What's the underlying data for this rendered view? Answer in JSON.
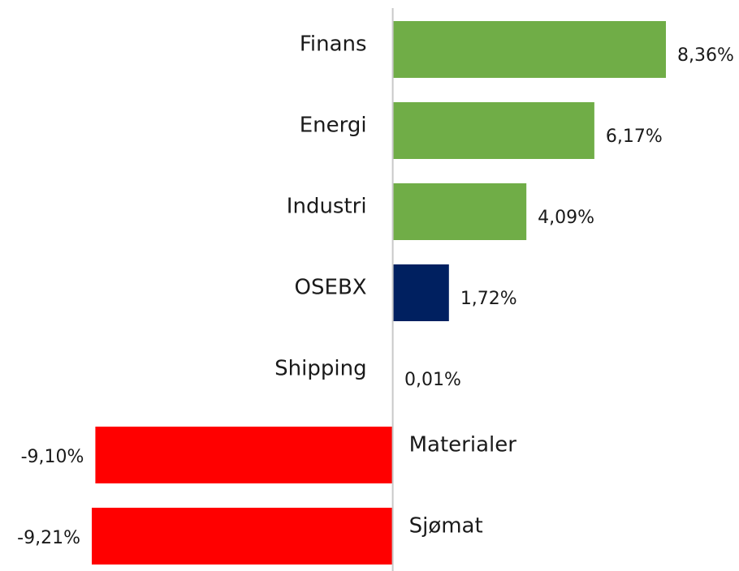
{
  "chart_data": {
    "type": "bar",
    "orientation": "horizontal",
    "categories": [
      "Finans",
      "Energi",
      "Industri",
      "OSEBX",
      "Shipping",
      "Materialer",
      "Sjømat"
    ],
    "values": [
      8.36,
      6.17,
      4.09,
      1.72,
      0.01,
      -9.1,
      -9.21
    ],
    "value_labels": [
      "8,36%",
      "6,17%",
      "4,09%",
      "1,72%",
      "0,01%",
      "-9,10%",
      "-9,21%"
    ],
    "colors": [
      "#70ad47",
      "#70ad47",
      "#70ad47",
      "#002060",
      "#70ad47",
      "#ff0000",
      "#ff0000"
    ]
  }
}
